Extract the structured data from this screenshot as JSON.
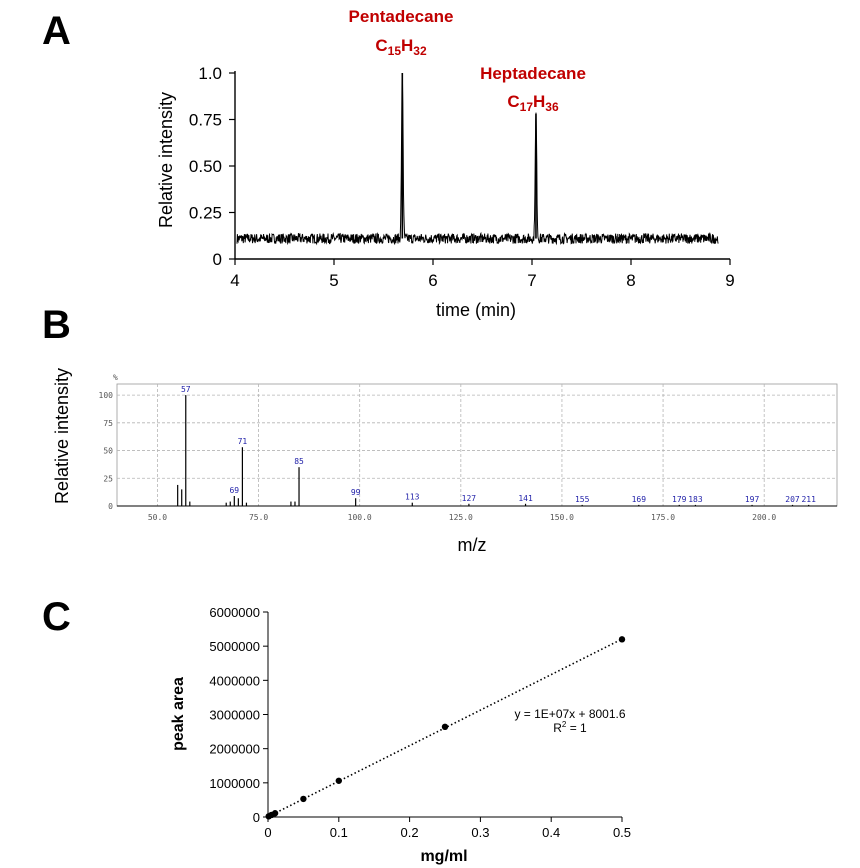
{
  "panels": {
    "a": "A",
    "b": "B",
    "c": "C"
  },
  "chart_data": [
    {
      "panel": "A",
      "type": "line",
      "xlabel": "time (min)",
      "ylabel": "Relative intensity",
      "xlim": [
        4,
        9
      ],
      "ylim": [
        0,
        1.0
      ],
      "x_ticks": [
        "4",
        "5",
        "6",
        "7",
        "8",
        "9"
      ],
      "y_ticks": [
        "0",
        "0.25",
        "0.50",
        "0.75",
        "1.0"
      ],
      "x_tick_values": [
        4,
        5,
        6,
        7,
        8,
        9
      ],
      "y_tick_values": [
        0,
        0.25,
        0.5,
        0.75,
        1.0
      ],
      "baseline": 0.11,
      "peaks": [
        {
          "name": "Pentadecane",
          "formula": {
            "c": "C",
            "c_sub": "15",
            "h": "H",
            "h_sub": "32"
          },
          "x": 5.69,
          "y": 1.0
        },
        {
          "name": "Heptadecane",
          "formula": {
            "c": "C",
            "c_sub": "17",
            "h": "H",
            "h_sub": "36"
          },
          "x": 7.04,
          "y": 0.78
        }
      ],
      "grid": false
    },
    {
      "panel": "B",
      "type": "bar",
      "xlabel": "m/z",
      "ylabel": "Relative intensity",
      "unit_label": "%",
      "xlim": [
        40,
        218
      ],
      "ylim": [
        0,
        110
      ],
      "x_ticks": [
        "50.0",
        "75.0",
        "100.0",
        "125.0",
        "150.0",
        "175.0",
        "200.0"
      ],
      "x_tick_values": [
        50,
        75,
        100,
        125,
        150,
        175,
        200
      ],
      "y_ticks": [
        "0",
        "25",
        "50",
        "75",
        "100"
      ],
      "y_tick_values": [
        0,
        25,
        50,
        75,
        100
      ],
      "peaks": [
        {
          "mz": 55,
          "value": 19
        },
        {
          "mz": 56,
          "value": 15
        },
        {
          "mz": 57,
          "value": 100,
          "label": "57"
        },
        {
          "mz": 58,
          "value": 4
        },
        {
          "mz": 67,
          "value": 3
        },
        {
          "mz": 68,
          "value": 4
        },
        {
          "mz": 69,
          "value": 9,
          "label": "69"
        },
        {
          "mz": 70,
          "value": 7
        },
        {
          "mz": 71,
          "value": 53,
          "label": "71"
        },
        {
          "mz": 72,
          "value": 3
        },
        {
          "mz": 83,
          "value": 4
        },
        {
          "mz": 84,
          "value": 4
        },
        {
          "mz": 85,
          "value": 35,
          "label": "85"
        },
        {
          "mz": 99,
          "value": 7,
          "label": "99"
        },
        {
          "mz": 113,
          "value": 3,
          "label": "113"
        },
        {
          "mz": 127,
          "value": 2,
          "label": "127"
        },
        {
          "mz": 141,
          "value": 2,
          "label": "141"
        },
        {
          "mz": 155,
          "value": 1,
          "label": "155"
        },
        {
          "mz": 169,
          "value": 1,
          "label": "169"
        },
        {
          "mz": 179,
          "value": 1,
          "label": "179"
        },
        {
          "mz": 183,
          "value": 1,
          "label": "183"
        },
        {
          "mz": 197,
          "value": 1,
          "label": "197"
        },
        {
          "mz": 207,
          "value": 1,
          "label": "207"
        },
        {
          "mz": 211,
          "value": 1,
          "label": "211"
        }
      ],
      "grid": true
    },
    {
      "panel": "C",
      "type": "scatter",
      "xlabel": "mg/ml",
      "ylabel": "peak area",
      "xlim": [
        0,
        0.5
      ],
      "ylim": [
        0,
        6000000
      ],
      "x_ticks": [
        "0",
        "0.1",
        "0.2",
        "0.3",
        "0.4",
        "0.5"
      ],
      "x_tick_values": [
        0,
        0.1,
        0.2,
        0.3,
        0.4,
        0.5
      ],
      "y_ticks": [
        "0",
        "1000000",
        "2000000",
        "3000000",
        "4000000",
        "5000000",
        "6000000"
      ],
      "y_tick_values": [
        0,
        1000000,
        2000000,
        3000000,
        4000000,
        5000000,
        6000000
      ],
      "points": [
        {
          "x": 0.001,
          "y": 20000
        },
        {
          "x": 0.005,
          "y": 60000
        },
        {
          "x": 0.01,
          "y": 110000
        },
        {
          "x": 0.05,
          "y": 530000
        },
        {
          "x": 0.1,
          "y": 1060000
        },
        {
          "x": 0.25,
          "y": 2640000
        },
        {
          "x": 0.5,
          "y": 5200000
        }
      ],
      "trendline": {
        "slope": 10400000,
        "intercept": 8001.6,
        "style": "dotted"
      },
      "equation": "y = 1E+07x + 8001.6",
      "r_squared": {
        "base": "R",
        "sup": "2",
        "rest": " = 1"
      },
      "grid": false
    }
  ]
}
